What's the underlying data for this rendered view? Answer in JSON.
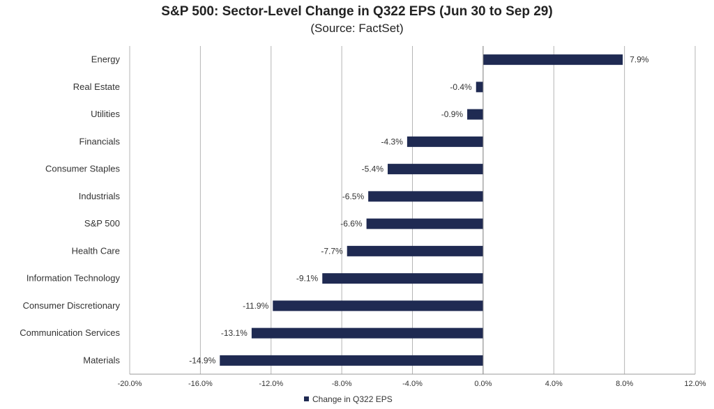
{
  "chart_data": {
    "type": "bar",
    "orientation": "horizontal",
    "title": "S&P 500: Sector-Level Change in Q322 EPS (Jun 30 to Sep 29)",
    "subtitle": "(Source: FactSet)",
    "categories": [
      "Energy",
      "Real Estate",
      "Utilities",
      "Financials",
      "Consumer Staples",
      "Industrials",
      "S&P 500",
      "Health Care",
      "Information Technology",
      "Consumer Discretionary",
      "Communication Services",
      "Materials"
    ],
    "series": [
      {
        "name": "Change in Q322 EPS",
        "values": [
          7.9,
          -0.4,
          -0.9,
          -4.3,
          -5.4,
          -6.5,
          -6.6,
          -7.7,
          -9.1,
          -11.9,
          -13.1,
          -14.9
        ],
        "labels": [
          "7.9%",
          "-0.4%",
          "-0.9%",
          "-4.3%",
          "-5.4%",
          "-6.5%",
          "-6.6%",
          "-7.7%",
          "-9.1%",
          "-11.9%",
          "-13.1%",
          "-14.9%"
        ],
        "color": "#1f2a52"
      }
    ],
    "xlim": [
      -20,
      12
    ],
    "xticks": [
      -20,
      -16,
      -12,
      -8,
      -4,
      0,
      4,
      8,
      12
    ],
    "xtick_labels": [
      "-20.0%",
      "-16.0%",
      "-12.0%",
      "-8.0%",
      "-4.0%",
      "0.0%",
      "4.0%",
      "8.0%",
      "12.0%"
    ],
    "grid": true,
    "legend_position": "bottom"
  }
}
